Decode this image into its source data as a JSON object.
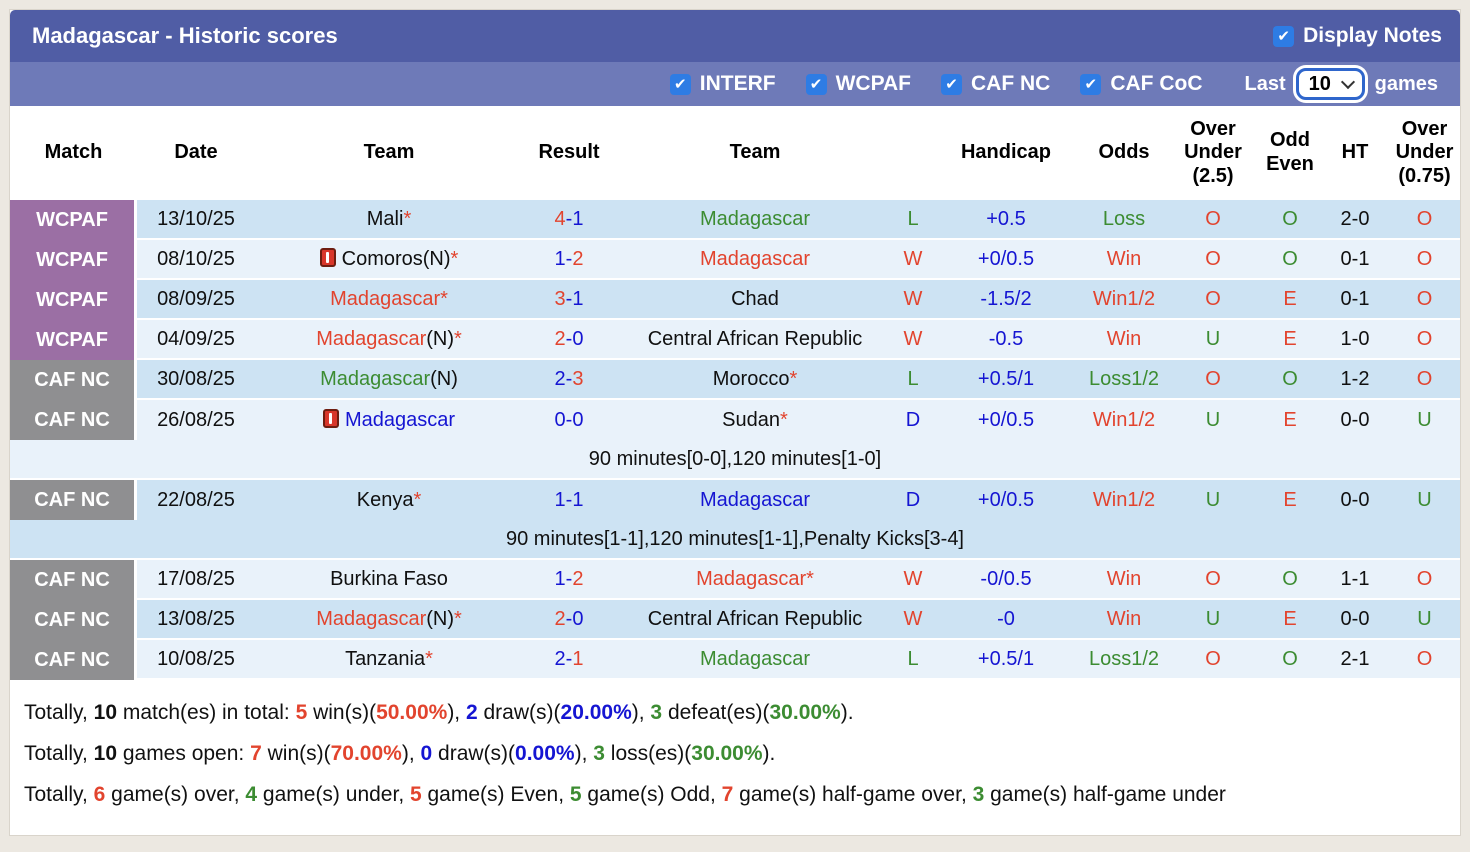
{
  "header": {
    "title": "Madagascar - Historic scores",
    "display_notes_label": "Display Notes"
  },
  "icons": {
    "check": "✔"
  },
  "colors": {
    "page": "#ece8e1",
    "barTop": "#505da5",
    "barMid": "#6e7ab8",
    "chk": "#2e7ce4",
    "red": "#e2442e",
    "green": "#3c8c32",
    "blue": "#1515d2",
    "ink": "#101010",
    "purple": "#9b6fa4",
    "gray": "#8f8f91",
    "rowDark": "#cde3f3",
    "rowLight": "#e9f2fa"
  },
  "filter_bar": {
    "competitions": [
      {
        "label": "INTERF",
        "checked": true
      },
      {
        "label": "WCPAF",
        "checked": true
      },
      {
        "label": "CAF NC",
        "checked": true
      },
      {
        "label": "CAF CoC",
        "checked": true
      }
    ],
    "last_label": "Last",
    "games_count": "10",
    "games_label": "games"
  },
  "columns": [
    "Match",
    "Date",
    "Team",
    "Result",
    "Team",
    "",
    "Handicap",
    "Odds",
    "Over Under (2.5)",
    "Odd Even",
    "HT",
    "Over Under (0.75)"
  ],
  "table": {
    "rows": [
      {
        "type": "match",
        "shade": "dark",
        "badge": "WCPAF",
        "badge_color": "purple",
        "date": "13/10/25",
        "icon": false,
        "team1": [
          {
            "t": "Mali"
          },
          {
            "t": "*",
            "c": "r"
          }
        ],
        "result": [
          {
            "t": "4",
            "c": "r"
          },
          {
            "t": "-1",
            "c": "b"
          }
        ],
        "team2": [
          {
            "t": "Madagascar",
            "c": "g"
          }
        ],
        "wdl": {
          "t": "L",
          "c": "g"
        },
        "handicap": "+0.5",
        "odds": {
          "t": "Loss",
          "c": "g"
        },
        "ou25": {
          "t": "O",
          "c": "r"
        },
        "oe": {
          "t": "O",
          "c": "g"
        },
        "ht": "2-0",
        "ou075": {
          "t": "O",
          "c": "r"
        },
        "merge_below": false
      },
      {
        "type": "match",
        "shade": "light",
        "badge": "WCPAF",
        "badge_color": "purple",
        "date": "08/10/25",
        "icon": true,
        "team1": [
          {
            "t": "Comoros(N)"
          },
          {
            "t": "*",
            "c": "r"
          }
        ],
        "result": [
          {
            "t": "1-",
            "c": "b"
          },
          {
            "t": "2",
            "c": "r"
          }
        ],
        "team2": [
          {
            "t": "Madagascar",
            "c": "r"
          }
        ],
        "wdl": {
          "t": "W",
          "c": "r"
        },
        "handicap": "+0/0.5",
        "odds": {
          "t": "Win",
          "c": "r"
        },
        "ou25": {
          "t": "O",
          "c": "r"
        },
        "oe": {
          "t": "O",
          "c": "g"
        },
        "ht": "0-1",
        "ou075": {
          "t": "O",
          "c": "r"
        },
        "merge_below": false
      },
      {
        "type": "match",
        "shade": "dark",
        "badge": "WCPAF",
        "badge_color": "purple",
        "date": "08/09/25",
        "icon": false,
        "team1": [
          {
            "t": "Madagascar*",
            "c": "r"
          }
        ],
        "result": [
          {
            "t": "3",
            "c": "r"
          },
          {
            "t": "-1",
            "c": "b"
          }
        ],
        "team2": [
          {
            "t": "Chad"
          }
        ],
        "wdl": {
          "t": "W",
          "c": "r"
        },
        "handicap": "-1.5/2",
        "odds": {
          "t": "Win1/2",
          "c": "r"
        },
        "ou25": {
          "t": "O",
          "c": "r"
        },
        "oe": {
          "t": "E",
          "c": "r"
        },
        "ht": "0-1",
        "ou075": {
          "t": "O",
          "c": "r"
        },
        "merge_below": false
      },
      {
        "type": "match",
        "shade": "light",
        "badge": "WCPAF",
        "badge_color": "purple",
        "date": "04/09/25",
        "icon": false,
        "team1": [
          {
            "t": "Madagascar",
            "c": "r"
          },
          {
            "t": "(N)"
          },
          {
            "t": "*",
            "c": "r"
          }
        ],
        "result": [
          {
            "t": "2",
            "c": "r"
          },
          {
            "t": "-0",
            "c": "b"
          }
        ],
        "team2": [
          {
            "t": "Central African Republic"
          }
        ],
        "wdl": {
          "t": "W",
          "c": "r"
        },
        "handicap": "-0.5",
        "odds": {
          "t": "Win",
          "c": "r"
        },
        "ou25": {
          "t": "U",
          "c": "g"
        },
        "oe": {
          "t": "E",
          "c": "r"
        },
        "ht": "1-0",
        "ou075": {
          "t": "O",
          "c": "r"
        },
        "merge_below": false
      },
      {
        "type": "match",
        "shade": "dark",
        "badge": "CAF NC",
        "badge_color": "gray",
        "date": "30/08/25",
        "icon": false,
        "team1": [
          {
            "t": "Madagascar",
            "c": "g"
          },
          {
            "t": "(N)"
          }
        ],
        "result": [
          {
            "t": "2-",
            "c": "b"
          },
          {
            "t": "3",
            "c": "r"
          }
        ],
        "team2": [
          {
            "t": "Morocco"
          },
          {
            "t": "*",
            "c": "r"
          }
        ],
        "wdl": {
          "t": "L",
          "c": "g"
        },
        "handicap": "+0.5/1",
        "odds": {
          "t": "Loss1/2",
          "c": "g"
        },
        "ou25": {
          "t": "O",
          "c": "r"
        },
        "oe": {
          "t": "O",
          "c": "g"
        },
        "ht": "1-2",
        "ou075": {
          "t": "O",
          "c": "r"
        },
        "merge_below": false
      },
      {
        "type": "match",
        "shade": "light",
        "badge": "CAF NC",
        "badge_color": "gray",
        "date": "26/08/25",
        "icon": true,
        "team1": [
          {
            "t": "Madagascar",
            "c": "b"
          }
        ],
        "result": [
          {
            "t": "0-0",
            "c": "b"
          }
        ],
        "team2": [
          {
            "t": "Sudan"
          },
          {
            "t": "*",
            "c": "r"
          }
        ],
        "wdl": {
          "t": "D",
          "c": "b"
        },
        "handicap": "+0/0.5",
        "odds": {
          "t": "Win1/2",
          "c": "r"
        },
        "ou25": {
          "t": "U",
          "c": "g"
        },
        "oe": {
          "t": "E",
          "c": "r"
        },
        "ht": "0-0",
        "ou075": {
          "t": "U",
          "c": "g"
        },
        "merge_below": true
      },
      {
        "type": "note",
        "shade": "light",
        "text": "90 minutes[0-0],120 minutes[1-0]"
      },
      {
        "type": "match",
        "shade": "dark",
        "badge": "CAF NC",
        "badge_color": "gray",
        "date": "22/08/25",
        "icon": false,
        "team1": [
          {
            "t": "Kenya"
          },
          {
            "t": "*",
            "c": "r"
          }
        ],
        "result": [
          {
            "t": "1-1",
            "c": "b"
          }
        ],
        "team2": [
          {
            "t": "Madagascar",
            "c": "b"
          }
        ],
        "wdl": {
          "t": "D",
          "c": "b"
        },
        "handicap": "+0/0.5",
        "odds": {
          "t": "Win1/2",
          "c": "r"
        },
        "ou25": {
          "t": "U",
          "c": "g"
        },
        "oe": {
          "t": "E",
          "c": "r"
        },
        "ht": "0-0",
        "ou075": {
          "t": "U",
          "c": "g"
        },
        "merge_below": true
      },
      {
        "type": "note",
        "shade": "dark",
        "text": "90 minutes[1-1],120 minutes[1-1],Penalty Kicks[3-4]"
      },
      {
        "type": "match",
        "shade": "light",
        "badge": "CAF NC",
        "badge_color": "gray",
        "date": "17/08/25",
        "icon": false,
        "team1": [
          {
            "t": "Burkina Faso"
          }
        ],
        "result": [
          {
            "t": "1-",
            "c": "b"
          },
          {
            "t": "2",
            "c": "r"
          }
        ],
        "team2": [
          {
            "t": "Madagascar*",
            "c": "r"
          }
        ],
        "wdl": {
          "t": "W",
          "c": "r"
        },
        "handicap": "-0/0.5",
        "odds": {
          "t": "Win",
          "c": "r"
        },
        "ou25": {
          "t": "O",
          "c": "r"
        },
        "oe": {
          "t": "O",
          "c": "g"
        },
        "ht": "1-1",
        "ou075": {
          "t": "O",
          "c": "r"
        },
        "merge_below": false
      },
      {
        "type": "match",
        "shade": "dark",
        "badge": "CAF NC",
        "badge_color": "gray",
        "date": "13/08/25",
        "icon": false,
        "team1": [
          {
            "t": "Madagascar",
            "c": "r"
          },
          {
            "t": "(N)"
          },
          {
            "t": "*",
            "c": "r"
          }
        ],
        "result": [
          {
            "t": "2",
            "c": "r"
          },
          {
            "t": "-0",
            "c": "b"
          }
        ],
        "team2": [
          {
            "t": "Central African Republic"
          }
        ],
        "wdl": {
          "t": "W",
          "c": "r"
        },
        "handicap": "-0",
        "odds": {
          "t": "Win",
          "c": "r"
        },
        "ou25": {
          "t": "U",
          "c": "g"
        },
        "oe": {
          "t": "E",
          "c": "r"
        },
        "ht": "0-0",
        "ou075": {
          "t": "U",
          "c": "g"
        },
        "merge_below": false
      },
      {
        "type": "match",
        "shade": "light",
        "badge": "CAF NC",
        "badge_color": "gray",
        "date": "10/08/25",
        "icon": false,
        "team1": [
          {
            "t": "Tanzania"
          },
          {
            "t": "*",
            "c": "r"
          }
        ],
        "result": [
          {
            "t": "2-",
            "c": "b"
          },
          {
            "t": "1",
            "c": "r"
          }
        ],
        "team2": [
          {
            "t": "Madagascar",
            "c": "g"
          }
        ],
        "wdl": {
          "t": "L",
          "c": "g"
        },
        "handicap": "+0.5/1",
        "odds": {
          "t": "Loss1/2",
          "c": "g"
        },
        "ou25": {
          "t": "O",
          "c": "r"
        },
        "oe": {
          "t": "O",
          "c": "g"
        },
        "ht": "2-1",
        "ou075": {
          "t": "O",
          "c": "r"
        },
        "merge_below": false
      }
    ]
  },
  "summary": {
    "lines": [
      [
        {
          "t": "Totally, "
        },
        {
          "t": "10",
          "b": 1
        },
        {
          "t": " match(es) in total: "
        },
        {
          "t": "5",
          "c": "r",
          "b": 1
        },
        {
          "t": " win(s)("
        },
        {
          "t": "50.00%",
          "c": "r",
          "b": 1
        },
        {
          "t": "), "
        },
        {
          "t": "2",
          "c": "b",
          "b": 1
        },
        {
          "t": " draw(s)("
        },
        {
          "t": "20.00%",
          "c": "b",
          "b": 1
        },
        {
          "t": "), "
        },
        {
          "t": "3",
          "c": "g",
          "b": 1
        },
        {
          "t": " defeat(es)("
        },
        {
          "t": "30.00%",
          "c": "g",
          "b": 1
        },
        {
          "t": ")."
        }
      ],
      [
        {
          "t": "Totally, "
        },
        {
          "t": "10",
          "b": 1
        },
        {
          "t": " games open: "
        },
        {
          "t": "7",
          "c": "r",
          "b": 1
        },
        {
          "t": " win(s)("
        },
        {
          "t": "70.00%",
          "c": "r",
          "b": 1
        },
        {
          "t": "), "
        },
        {
          "t": "0",
          "c": "b",
          "b": 1
        },
        {
          "t": " draw(s)("
        },
        {
          "t": "0.00%",
          "c": "b",
          "b": 1
        },
        {
          "t": "), "
        },
        {
          "t": "3",
          "c": "g",
          "b": 1
        },
        {
          "t": " loss(es)("
        },
        {
          "t": "30.00%",
          "c": "g",
          "b": 1
        },
        {
          "t": ")."
        }
      ],
      [
        {
          "t": "Totally, "
        },
        {
          "t": "6",
          "c": "r",
          "b": 1
        },
        {
          "t": " game(s) over, "
        },
        {
          "t": "4",
          "c": "g",
          "b": 1
        },
        {
          "t": " game(s) under, "
        },
        {
          "t": "5",
          "c": "r",
          "b": 1
        },
        {
          "t": " game(s) Even, "
        },
        {
          "t": "5",
          "c": "g",
          "b": 1
        },
        {
          "t": " game(s) Odd, "
        },
        {
          "t": "7",
          "c": "r",
          "b": 1
        },
        {
          "t": " game(s) half-game over, "
        },
        {
          "t": "3",
          "c": "g",
          "b": 1
        },
        {
          "t": " game(s) half-game under"
        }
      ]
    ]
  }
}
